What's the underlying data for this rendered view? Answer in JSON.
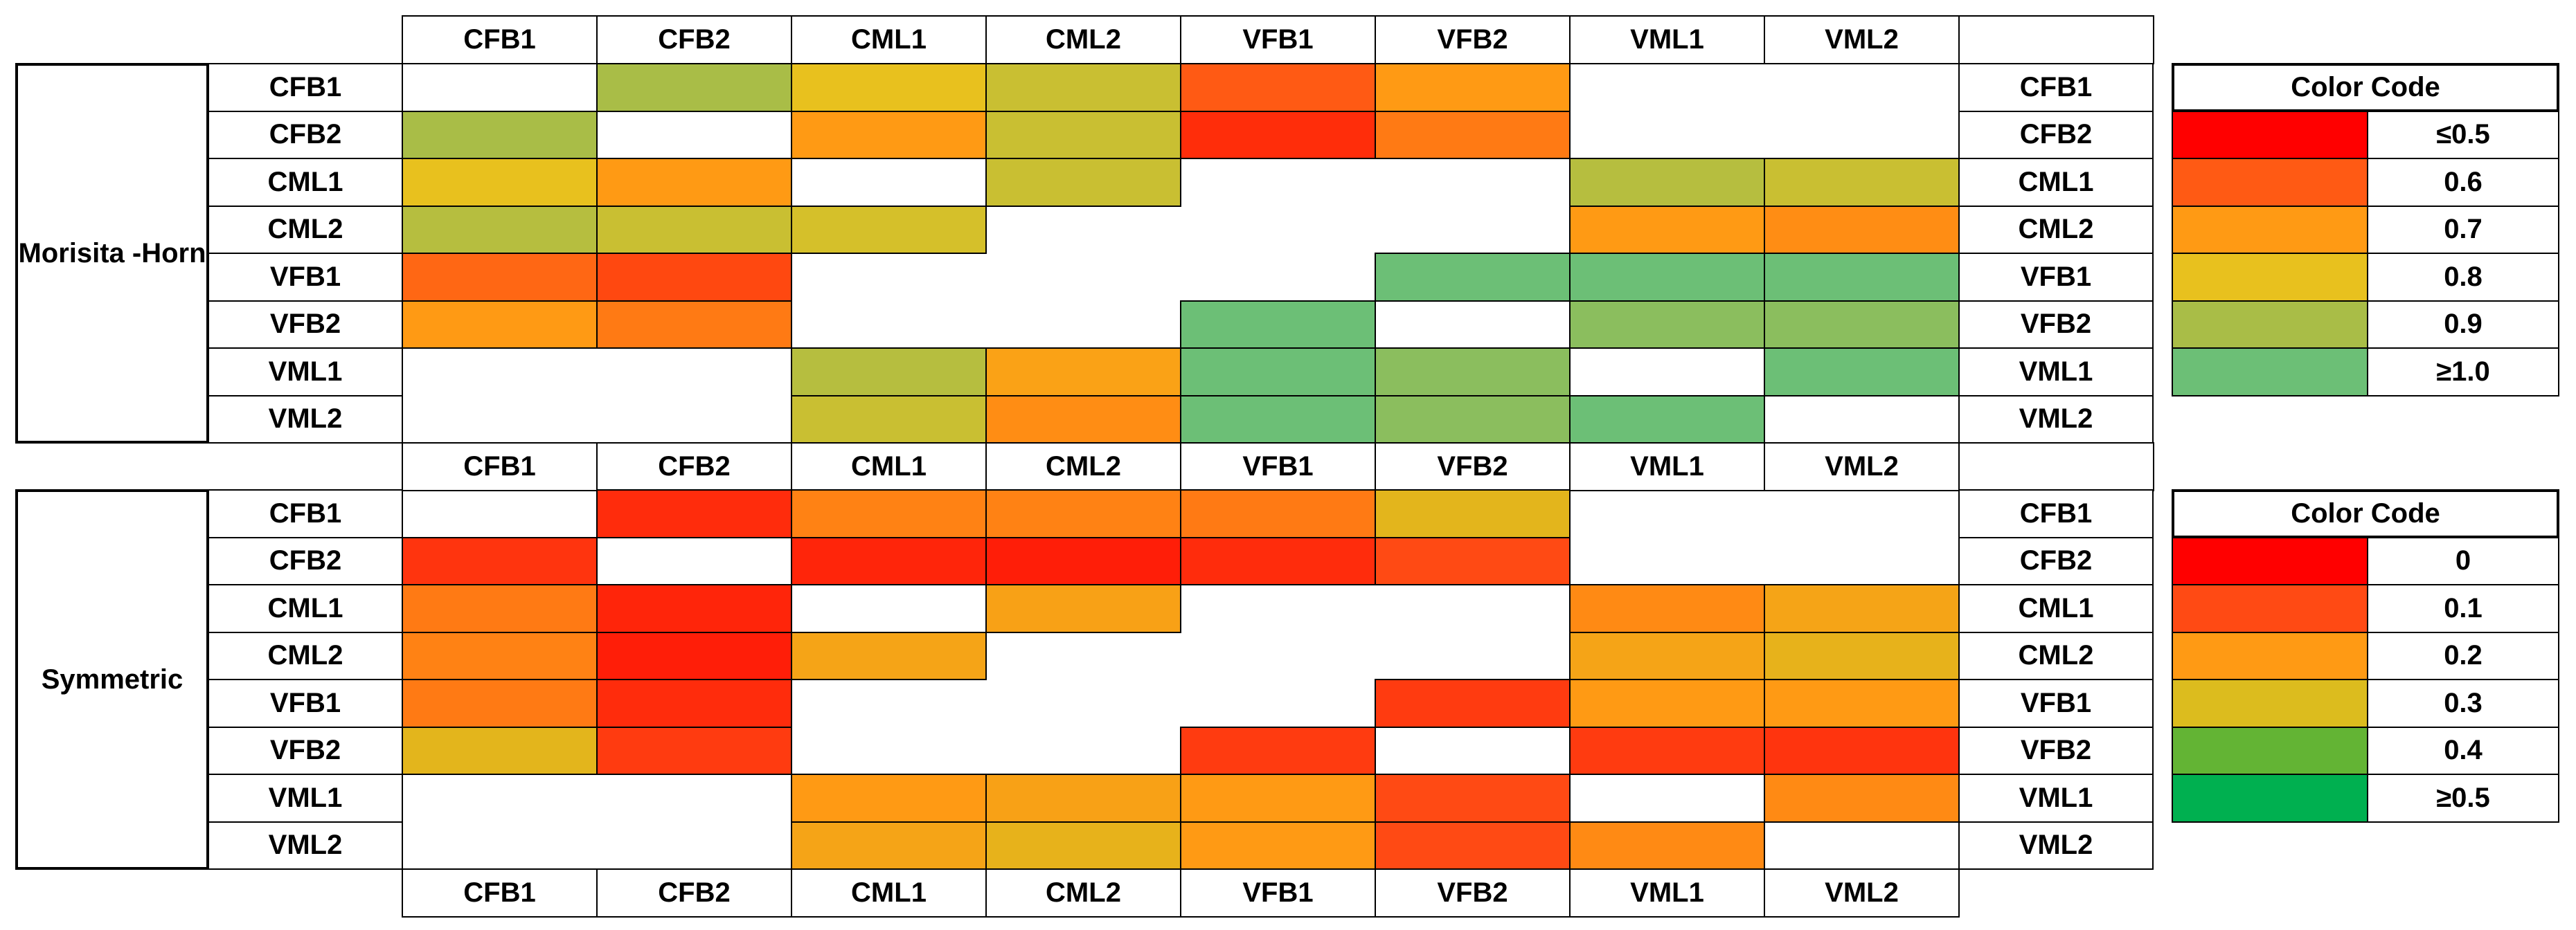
{
  "chart_data": [
    {
      "type": "heatmap",
      "name": "Morisita-Horn",
      "row_group_label": [
        "Morisita -",
        "Horn"
      ],
      "columns": [
        "CFB1",
        "CFB2",
        "CML1",
        "CML2",
        "VFB1",
        "VFB2",
        "VML1",
        "VML2"
      ],
      "rows": [
        "CFB1",
        "CFB2",
        "CML1",
        "CML2",
        "VFB1",
        "VFB2",
        "VML1",
        "VML2"
      ],
      "values": [
        [
          null,
          0.9,
          0.8,
          0.85,
          0.6,
          0.7,
          null,
          null
        ],
        [
          0.9,
          null,
          0.7,
          0.85,
          0.55,
          0.65,
          null,
          null
        ],
        [
          0.8,
          0.7,
          null,
          0.85,
          null,
          null,
          0.88,
          0.85
        ],
        [
          0.88,
          0.85,
          0.83,
          null,
          null,
          null,
          0.7,
          0.68
        ],
        [
          0.62,
          0.58,
          null,
          null,
          null,
          1.0,
          1.0,
          1.0
        ],
        [
          0.7,
          0.65,
          null,
          null,
          1.0,
          null,
          0.95,
          0.95
        ],
        [
          null,
          null,
          0.88,
          0.72,
          1.0,
          0.95,
          null,
          1.0
        ],
        [
          null,
          null,
          0.85,
          0.68,
          1.0,
          0.95,
          1.0,
          null
        ]
      ],
      "legend": {
        "title": "Color Code",
        "labels": [
          "≤0.5",
          "0.6",
          "0.7",
          "0.8",
          "0.9",
          "≥1.0"
        ],
        "values": [
          0.5,
          0.6,
          0.7,
          0.8,
          0.9,
          1.0
        ]
      }
    },
    {
      "type": "heatmap",
      "name": "Symmetric",
      "row_group_label": [
        "Symmetric"
      ],
      "columns": [
        "CFB1",
        "CFB2",
        "CML1",
        "CML2",
        "VFB1",
        "VFB2",
        "VML1",
        "VML2"
      ],
      "rows": [
        "CFB1",
        "CFB2",
        "CML1",
        "CML2",
        "VFB1",
        "VFB2",
        "VML1",
        "VML2"
      ],
      "values": [
        [
          null,
          0.06,
          0.17,
          0.17,
          0.16,
          0.28,
          null,
          null
        ],
        [
          0.07,
          null,
          0.05,
          0.04,
          0.06,
          0.1,
          null,
          null
        ],
        [
          0.16,
          0.05,
          null,
          0.22,
          null,
          null,
          0.18,
          0.23
        ],
        [
          0.17,
          0.04,
          0.23,
          null,
          null,
          null,
          0.23,
          0.27
        ],
        [
          0.16,
          0.06,
          null,
          null,
          null,
          0.08,
          0.2,
          0.2
        ],
        [
          0.28,
          0.08,
          null,
          null,
          0.08,
          null,
          0.08,
          0.07
        ],
        [
          null,
          null,
          0.2,
          0.22,
          0.2,
          0.1,
          null,
          0.18
        ],
        [
          null,
          null,
          0.23,
          0.27,
          0.2,
          0.1,
          0.18,
          null
        ]
      ],
      "legend": {
        "title": "Color Code",
        "labels": [
          "0",
          "0.1",
          "0.2",
          "0.3",
          "0.4",
          "≥0.5"
        ],
        "values": [
          0,
          0.1,
          0.2,
          0.3,
          0.4,
          0.5
        ]
      }
    }
  ],
  "colors": {
    "mh_scale": [
      "#ff0000",
      "#ff5a14",
      "#ff9a14",
      "#e8c11e",
      "#a9bd47",
      "#6cbf76"
    ],
    "sym_scale": [
      "#ff0000",
      "#ff4a14",
      "#ff9a14",
      "#dcbc1e",
      "#63b434",
      "#00b050"
    ],
    "border": "#000000",
    "empty": "#ffffff"
  }
}
